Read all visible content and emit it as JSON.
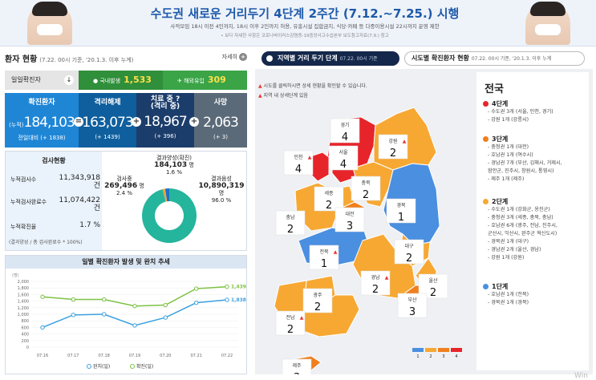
{
  "banner": {
    "title": "수도권 새로운 거리두기 4단계 2주간 (7.12.~7.25.) 시행",
    "subtitle": "사적모임 18시 이전 4인까지, 18시 이후 2인까지 허용, 유흥시설 집합금지, 식당·카페 등 다중이용시설 22시까지 운영 제한",
    "note": "• 보다 자세한 사항은 코로나바이러스감염증-19중앙사고수습본부 보도참고자료(7.9.) 참고"
  },
  "status": {
    "title": "환자 현황",
    "basis": "(7.22. 00시 기준, '20.1.3. 이후 누계)",
    "more_label": "자세히",
    "more_icon": "plus-icon",
    "daily_label": "일일확진자",
    "domestic_label": "국내발생",
    "domestic_value": "1,533",
    "overseas_label": "해외유입",
    "overseas_value": "309"
  },
  "cards": [
    {
      "title": "확진환자",
      "prefix": "(누적)",
      "value": "184,103",
      "delta": "전일대비 (+ 1838)",
      "color": "#1f86d6"
    },
    {
      "title": "격리해제",
      "prefix": "",
      "value": "163,073",
      "delta": "(+ 1439)",
      "color": "#0f5f9e"
    },
    {
      "title": "치료 중",
      "title2": "(격리 중)",
      "prefix": "",
      "value": "18,967",
      "delta": "(+ 396)",
      "color": "#1b3d6b"
    },
    {
      "title": "사망",
      "prefix": "",
      "value": "2,063",
      "delta": "(+ 3)",
      "color": "#5b6a78"
    }
  ],
  "ops": [
    "=",
    "+",
    "+"
  ],
  "tests": {
    "title": "검사현황",
    "rows": [
      {
        "label": "누적검사수",
        "value": "11,343,918",
        "unit": "건"
      },
      {
        "label": "누적검사완료수",
        "value": "11,074,422",
        "unit": "건"
      },
      {
        "label": "누적확진율",
        "value": "1.7",
        "unit": "%"
      }
    ],
    "formula": "(결과양성 / 총 검사완료수 * 100%)",
    "pie": {
      "positive_label": "결과양성(확진)",
      "positive_value": "184,103",
      "positive_unit": "명",
      "positive_pct": "1.6 %",
      "testing_label": "검사중",
      "testing_value": "269,496",
      "testing_unit": "명",
      "testing_pct": "2.4 %",
      "negative_label": "결과음성",
      "negative_value": "10,890,319",
      "negative_unit": "명",
      "negative_pct": "96.0 %",
      "shares": [
        0.016,
        0.024,
        0.96
      ],
      "colors": [
        "#f2a33a",
        "#1b6fc7",
        "#25b59c"
      ]
    }
  },
  "trend": {
    "title": "일별 확진환자 발생 및 완치 추세",
    "unit": "(명)",
    "chart_data": {
      "type": "line",
      "x": [
        "07.16",
        "07.17",
        "07.18",
        "07.19",
        "07.20",
        "07.21",
        "07.22"
      ],
      "series": [
        {
          "name": "완치(일)",
          "values": [
            600,
            980,
            1000,
            660,
            900,
            1350,
            1439
          ],
          "color": "#3aa0e0"
        },
        {
          "name": "확진(일)",
          "values": [
            1530,
            1450,
            1450,
            1250,
            1280,
            1780,
            1838
          ],
          "color": "#7cc243"
        }
      ],
      "ylim": [
        0,
        2000
      ],
      "yticks": [
        0,
        200,
        400,
        600,
        800,
        1000,
        1200,
        1400,
        1600,
        1800,
        2000
      ],
      "end_labels": [
        "1,838",
        "1,439"
      ]
    }
  },
  "map": {
    "tab_active": "지역별 거리 두기 단계",
    "tab_active_basis": "07.22. 00시 기준",
    "tab_other": "시도별 확진환자 현황",
    "tab_other_basis": "07.22. 00시 기준, '20.1.3. 이후 누계",
    "note1": "시도를 클릭하시면 상세 현황을 확인할 수 있습니다.",
    "note2": "지역 내 상세단계 있음",
    "nation": "전국",
    "regions": [
      {
        "name": "경기",
        "level": "4",
        "warn": false
      },
      {
        "name": "인천",
        "level": "4",
        "warn": true
      },
      {
        "name": "서울",
        "level": "4",
        "warn": false
      },
      {
        "name": "강원",
        "level": "2",
        "warn": true
      },
      {
        "name": "충북",
        "level": "2",
        "warn": false
      },
      {
        "name": "세종",
        "level": "2",
        "warn": false
      },
      {
        "name": "대전",
        "level": "3",
        "warn": false
      },
      {
        "name": "충남",
        "level": "2",
        "warn": false
      },
      {
        "name": "경북",
        "level": "1",
        "warn": false
      },
      {
        "name": "전북",
        "level": "1",
        "warn": true
      },
      {
        "name": "대구",
        "level": "2",
        "warn": false
      },
      {
        "name": "광주",
        "level": "2",
        "warn": false
      },
      {
        "name": "경남",
        "level": "2",
        "warn": true
      },
      {
        "name": "울산",
        "level": "2",
        "warn": false
      },
      {
        "name": "전남",
        "level": "2",
        "warn": true
      },
      {
        "name": "부산",
        "level": "3",
        "warn": false
      },
      {
        "name": "제주",
        "level": "3",
        "warn": false
      }
    ],
    "scale": [
      "1",
      "2",
      "3",
      "4"
    ],
    "level_colors": {
      "1": "#4a8fe0",
      "2": "#f7a833",
      "3": "#f07f1e",
      "4": "#e8242b"
    },
    "legend": [
      {
        "head": "4단계",
        "color": "#e8242b",
        "items": [
          "- 수도권 3개 (서울, 인천, 경기)",
          "- 강원 1개 (강릉시)"
        ]
      },
      {
        "head": "3단계",
        "color": "#f07f1e",
        "items": [
          "- 충청권 1개 (대전)",
          "- 호남권 1개 (여수시)",
          "- 경남권 7개 (부산, 김해시, 거제시,",
          "  함안군, 진주시, 창원시, 통영시)",
          "- 제주 1개 (제주)"
        ]
      },
      {
        "head": "2단계",
        "color": "#f7a833",
        "items": [
          "- 수도권 1개 (강화군, 옹진군)",
          "- 충청권 3개 (세종, 충북, 충남)",
          "- 호남권 6개 (광주, 전남, 진주시,",
          "  군산시, 익산시, 완주군 혁신도시)",
          "- 경북권 1개 (대구)",
          "- 경남권 2개 (울산, 경남)",
          "- 강원 1개 (강원)"
        ]
      },
      {
        "head": "1단계",
        "color": "#4a8fe0",
        "items": [
          "- 호남권 1개 (전북)",
          "- 경북권 1개 (경북)"
        ]
      }
    ],
    "watermark": "Win"
  }
}
